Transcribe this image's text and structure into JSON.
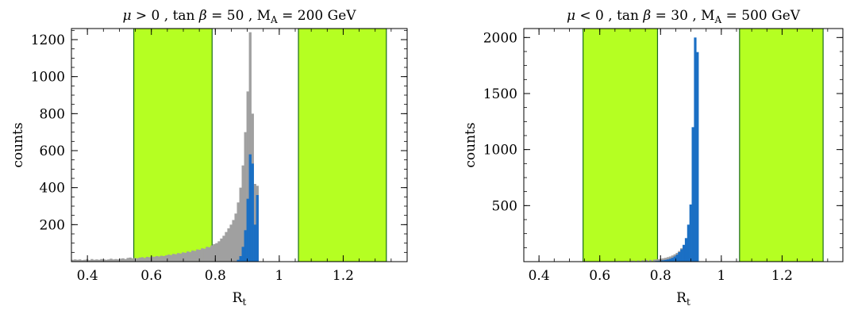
{
  "colors": {
    "band": "#b5ff22",
    "band_edge": "#1a6b1a",
    "all_points": "#a0a0a0",
    "selected_points": "#1a6fc4",
    "frame": "#000000"
  },
  "chart_data": [
    {
      "type": "bar",
      "title": "μ > 0 , tan β = 50 , M_A = 200 GeV",
      "title_parts": [
        "μ > 0 ,  tan ",
        "β",
        " = 50 ,  M",
        "A",
        " = 200 GeV"
      ],
      "xlabel": "R_t",
      "xlabel_parts": [
        "R",
        "t"
      ],
      "ylabel": "counts",
      "xlim": [
        0.35,
        1.4
      ],
      "ylim": [
        0,
        1260
      ],
      "xticks": [
        0.4,
        0.6,
        0.8,
        1,
        1.2
      ],
      "xtick_labels": [
        "0.4",
        "0.6",
        "0.8",
        "1",
        "1.2"
      ],
      "yticks": [
        200,
        400,
        600,
        800,
        1000,
        1200
      ],
      "ytick_labels": [
        "200",
        "400",
        "600",
        "800",
        "1000",
        "1200"
      ],
      "bands": [
        [
          0.545,
          0.79
        ],
        [
          1.06,
          1.335
        ]
      ],
      "bin_width": 0.0075,
      "series": [
        {
          "role": "all",
          "bins": [
            [
              0.35,
              10
            ],
            [
              0.3575,
              12
            ],
            [
              0.365,
              10
            ],
            [
              0.3725,
              12
            ],
            [
              0.38,
              8
            ],
            [
              0.3875,
              10
            ],
            [
              0.395,
              12
            ],
            [
              0.4025,
              8
            ],
            [
              0.41,
              14
            ],
            [
              0.4175,
              10
            ],
            [
              0.425,
              12
            ],
            [
              0.4325,
              10
            ],
            [
              0.44,
              14
            ],
            [
              0.4475,
              12
            ],
            [
              0.455,
              10
            ],
            [
              0.4625,
              12
            ],
            [
              0.47,
              16
            ],
            [
              0.4775,
              12
            ],
            [
              0.485,
              14
            ],
            [
              0.4925,
              12
            ],
            [
              0.5,
              16
            ],
            [
              0.5075,
              18
            ],
            [
              0.515,
              14
            ],
            [
              0.5225,
              20
            ],
            [
              0.53,
              22
            ],
            [
              0.5375,
              18
            ],
            [
              0.545,
              20
            ],
            [
              0.5525,
              18
            ],
            [
              0.56,
              22
            ],
            [
              0.5675,
              24
            ],
            [
              0.575,
              20
            ],
            [
              0.5825,
              26
            ],
            [
              0.59,
              24
            ],
            [
              0.5975,
              28
            ],
            [
              0.605,
              26
            ],
            [
              0.6125,
              30
            ],
            [
              0.62,
              28
            ],
            [
              0.6275,
              32
            ],
            [
              0.635,
              30
            ],
            [
              0.6425,
              34
            ],
            [
              0.65,
              38
            ],
            [
              0.6575,
              36
            ],
            [
              0.665,
              42
            ],
            [
              0.6725,
              40
            ],
            [
              0.68,
              46
            ],
            [
              0.6875,
              44
            ],
            [
              0.695,
              50
            ],
            [
              0.7025,
              48
            ],
            [
              0.71,
              55
            ],
            [
              0.7175,
              52
            ],
            [
              0.725,
              60
            ],
            [
              0.7325,
              58
            ],
            [
              0.74,
              66
            ],
            [
              0.7475,
              64
            ],
            [
              0.755,
              72
            ],
            [
              0.7625,
              70
            ],
            [
              0.77,
              80
            ],
            [
              0.7775,
              78
            ],
            [
              0.785,
              88
            ],
            [
              0.7925,
              95
            ],
            [
              0.8,
              100
            ],
            [
              0.8075,
              110
            ],
            [
              0.815,
              125
            ],
            [
              0.8225,
              140
            ],
            [
              0.83,
              160
            ],
            [
              0.8375,
              180
            ],
            [
              0.845,
              200
            ],
            [
              0.8525,
              225
            ],
            [
              0.86,
              260
            ],
            [
              0.8675,
              320
            ],
            [
              0.875,
              400
            ],
            [
              0.8825,
              520
            ],
            [
              0.89,
              700
            ],
            [
              0.8975,
              920
            ],
            [
              0.905,
              1240
            ],
            [
              0.9125,
              800
            ],
            [
              0.92,
              420
            ],
            [
              0.9275,
              410
            ]
          ]
        },
        {
          "role": "selected",
          "bins": [
            [
              0.8675,
              10
            ],
            [
              0.875,
              30
            ],
            [
              0.8825,
              80
            ],
            [
              0.89,
              170
            ],
            [
              0.8975,
              340
            ],
            [
              0.905,
              580
            ],
            [
              0.9125,
              530
            ],
            [
              0.92,
              200
            ],
            [
              0.9275,
              360
            ]
          ]
        }
      ]
    },
    {
      "type": "bar",
      "title": "μ < 0 , tan β = 30 , M_A = 500 GeV",
      "title_parts": [
        "μ < 0 ,  tan ",
        "β",
        " = 30 ,  M",
        "A",
        " = 500 GeV"
      ],
      "xlabel": "R_t",
      "xlabel_parts": [
        "R",
        "t"
      ],
      "ylabel": "counts",
      "xlim": [
        0.35,
        1.4
      ],
      "ylim": [
        0,
        2080
      ],
      "xticks": [
        0.4,
        0.6,
        0.8,
        1,
        1.2
      ],
      "xtick_labels": [
        "0.4",
        "0.6",
        "0.8",
        "1",
        "1.2"
      ],
      "yticks": [
        500,
        1000,
        1500,
        2000
      ],
      "ytick_labels": [
        "500",
        "1000",
        "1500",
        "2000"
      ],
      "bands": [
        [
          0.545,
          0.79
        ],
        [
          1.06,
          1.335
        ]
      ],
      "bin_width": 0.0075,
      "series": [
        {
          "role": "all",
          "bins": [
            [
              0.62,
              4
            ],
            [
              0.64,
              4
            ],
            [
              0.66,
              6
            ],
            [
              0.68,
              6
            ],
            [
              0.7,
              8
            ],
            [
              0.7075,
              8
            ],
            [
              0.7225,
              10
            ],
            [
              0.7375,
              12
            ],
            [
              0.75,
              14
            ],
            [
              0.7625,
              16
            ],
            [
              0.775,
              18
            ],
            [
              0.7825,
              20
            ],
            [
              0.79,
              22
            ],
            [
              0.7975,
              26
            ],
            [
              0.805,
              30
            ],
            [
              0.8125,
              34
            ],
            [
              0.82,
              40
            ],
            [
              0.8275,
              46
            ],
            [
              0.835,
              55
            ],
            [
              0.8425,
              65
            ],
            [
              0.85,
              78
            ],
            [
              0.8575,
              95
            ],
            [
              0.865,
              120
            ]
          ]
        },
        {
          "role": "selected",
          "bins": [
            [
              0.7825,
              6
            ],
            [
              0.79,
              8
            ],
            [
              0.7975,
              10
            ],
            [
              0.805,
              12
            ],
            [
              0.8125,
              16
            ],
            [
              0.82,
              20
            ],
            [
              0.8275,
              26
            ],
            [
              0.835,
              34
            ],
            [
              0.8425,
              46
            ],
            [
              0.85,
              62
            ],
            [
              0.8575,
              85
            ],
            [
              0.865,
              110
            ],
            [
              0.8725,
              150
            ],
            [
              0.88,
              210
            ],
            [
              0.8875,
              330
            ],
            [
              0.895,
              510
            ],
            [
              0.9025,
              1200
            ],
            [
              0.91,
              2000
            ],
            [
              0.9175,
              1870
            ]
          ]
        }
      ]
    }
  ]
}
